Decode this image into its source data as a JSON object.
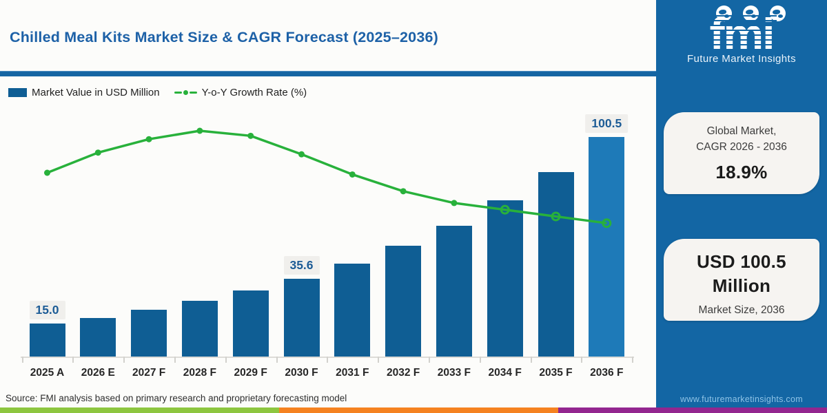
{
  "header": {
    "title": "Chilled Meal Kits Market Size & CAGR Forecast (2025–2036)"
  },
  "legend": {
    "bar_label": "Market Value in USD Million",
    "line_label": "Y-o-Y Growth Rate (%)"
  },
  "chart_data": {
    "type": "bar",
    "categories": [
      "2025 A",
      "2026 E",
      "2027 F",
      "2028 F",
      "2029 F",
      "2030 F",
      "2031 F",
      "2032 F",
      "2033 F",
      "2034 F",
      "2035 F",
      "2036 F"
    ],
    "series": [
      {
        "name": "Market Value in USD Million",
        "type": "bar",
        "values": [
          15.0,
          17.8,
          21.3,
          25.4,
          30.1,
          35.6,
          42.4,
          50.7,
          59.8,
          71.4,
          84.4,
          100.5
        ],
        "color": "#0f5e94",
        "last_bar_color": "#1e7ab8"
      },
      {
        "name": "Y-o-Y Growth Rate (%)",
        "type": "line",
        "values": [
          18.5,
          19.7,
          20.5,
          21.0,
          20.7,
          19.6,
          18.4,
          17.4,
          16.7,
          16.3,
          15.9,
          15.5
        ],
        "color": "#28b13b",
        "open_markers_from_index": 9
      }
    ],
    "data_labels": [
      {
        "index": 0,
        "text": "15.0"
      },
      {
        "index": 5,
        "text": "35.6"
      },
      {
        "index": 11,
        "text": "100.5"
      }
    ],
    "title": "Chilled Meal Kits Market Size & CAGR Forecast (2025–2036)",
    "xlabel": "",
    "ylabel": "",
    "ylim": [
      0,
      110
    ],
    "grid": false,
    "legend_position": "top-left"
  },
  "footer": {
    "source": "Source: FMI analysis based on primary research and proprietary forecasting model",
    "stripe_colors": [
      "#8dc63f",
      "#f58220",
      "#93268f"
    ]
  },
  "sidebar": {
    "logo": {
      "text": "fmi",
      "tagline": "Future Market Insights"
    },
    "cagr_card": {
      "line1": "Global Market,",
      "line2": "CAGR 2026 - 2036",
      "value": "18.9%"
    },
    "size_card": {
      "value": "USD 100.5 Million",
      "caption": "Market Size, 2036"
    },
    "website": "www.futuremarketinsights.com"
  },
  "colors": {
    "title": "#1d61a7",
    "divider": "#1565a3",
    "bar": "#0f5e94",
    "bar_highlight": "#1e7ab8",
    "line": "#28b13b",
    "sidebar_bg": "#1366a4",
    "card_bg": "#f6f4f1",
    "badge_bg": "#f0efec",
    "badge_text": "#1d5c96"
  }
}
